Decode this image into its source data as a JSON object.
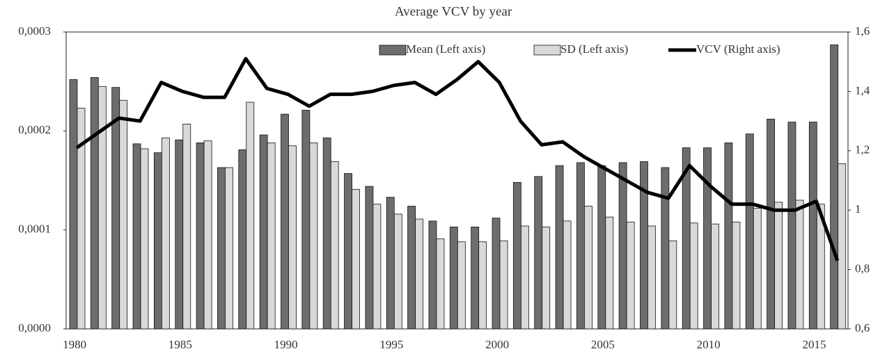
{
  "chart_data": {
    "type": "bar-line",
    "title": "Average VCV by year",
    "categories": [
      1980,
      null,
      null,
      null,
      null,
      1985,
      null,
      null,
      null,
      null,
      1990,
      null,
      null,
      null,
      null,
      1995,
      null,
      null,
      null,
      null,
      2000,
      null,
      null,
      null,
      null,
      2005,
      null,
      null,
      null,
      null,
      2010,
      null,
      null,
      null,
      null,
      2015,
      null
    ],
    "series": [
      {
        "name": "Mean (Left axis)",
        "color": "#6d6d6d",
        "type": "bar",
        "values": [
          0.000252,
          0.000254,
          0.000244,
          0.000187,
          0.000178,
          0.000191,
          0.000188,
          0.000163,
          0.000181,
          0.000196,
          0.000217,
          0.000221,
          0.000193,
          0.000157,
          0.000144,
          0.000133,
          0.000124,
          0.000109,
          0.000103,
          0.000103,
          0.000112,
          0.000148,
          0.000154,
          0.000165,
          0.000168,
          0.000165,
          0.000168,
          0.000169,
          0.000163,
          0.000183,
          0.000183,
          0.000188,
          0.000197,
          0.000212,
          0.000209,
          0.000209,
          0.000287
        ]
      },
      {
        "name": "SD (Left axis)",
        "color": "#d9d9d9",
        "type": "bar",
        "values": [
          0.000223,
          0.000245,
          0.000231,
          0.000182,
          0.000193,
          0.000207,
          0.00019,
          0.000163,
          0.000229,
          0.000188,
          0.000185,
          0.000188,
          0.000169,
          0.000141,
          0.000126,
          0.000116,
          0.000111,
          9.1e-05,
          8.8e-05,
          8.8e-05,
          8.9e-05,
          0.000104,
          0.000103,
          0.000109,
          0.000124,
          0.000113,
          0.000108,
          0.000104,
          8.9e-05,
          0.000107,
          0.000106,
          0.000108,
          0.000122,
          0.000128,
          0.00013,
          0.000126,
          0.000167
        ]
      },
      {
        "name": "VCV (Right axis)",
        "color": "#000000",
        "type": "line",
        "axis": "y2",
        "values": [
          1.21,
          1.26,
          1.31,
          1.3,
          1.43,
          1.4,
          1.38,
          1.38,
          1.51,
          1.41,
          1.39,
          1.35,
          1.39,
          1.39,
          1.4,
          1.42,
          1.43,
          1.39,
          1.44,
          1.5,
          1.43,
          1.3,
          1.22,
          1.23,
          1.18,
          1.14,
          1.1,
          1.06,
          1.04,
          1.15,
          1.08,
          1.02,
          1.02,
          1.0,
          1.0,
          1.03,
          0.83
        ]
      }
    ],
    "ylim": [
      0,
      0.0003
    ],
    "yticks": [
      {
        "value": 0,
        "label": "0,0000"
      },
      {
        "value": 0.0001,
        "label": "0,0001"
      },
      {
        "value": 0.0002,
        "label": "0,0002"
      },
      {
        "value": 0.0003,
        "label": "0,0003"
      }
    ],
    "y2lim": [
      0.6,
      1.6
    ],
    "y2ticks": [
      {
        "value": 0.6,
        "label": "0,6"
      },
      {
        "value": 0.8,
        "label": "0,8"
      },
      1,
      {
        "value": 1.2,
        "label": "1,2"
      },
      {
        "value": 1.4,
        "label": "1,4"
      },
      {
        "value": 1.6,
        "label": "1,6"
      }
    ],
    "grid": false,
    "legend": "top"
  }
}
